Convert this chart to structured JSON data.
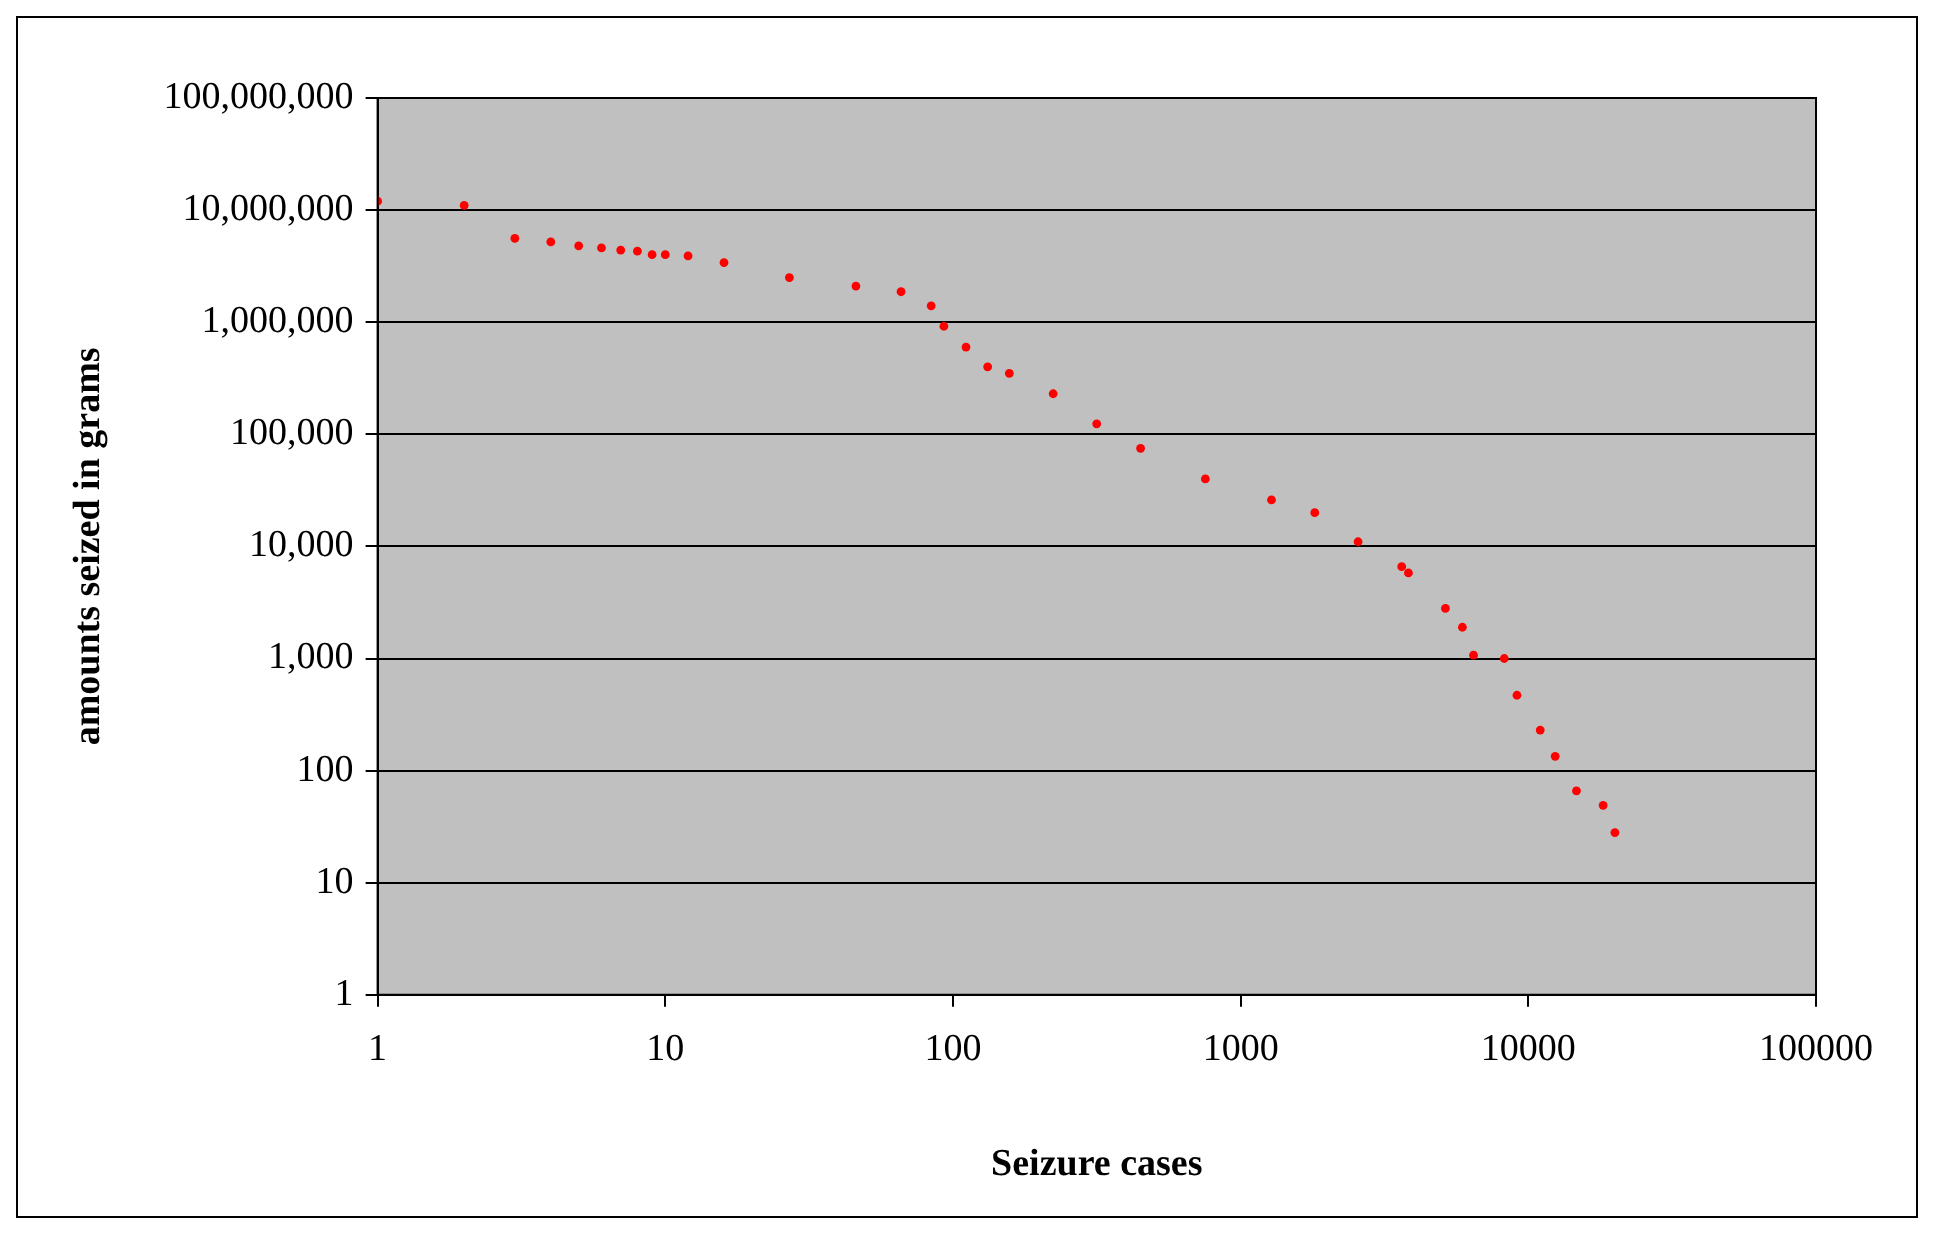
{
  "chart_data": {
    "type": "scatter",
    "xlabel": "Seizure cases",
    "ylabel": "amounts seized in grams",
    "log": "xy",
    "grid": "y",
    "marker": "circle",
    "xlim": [
      1,
      100000
    ],
    "xticks": [
      1,
      10,
      100,
      1000,
      10000,
      100000
    ],
    "ylim": [
      1,
      100000000
    ],
    "yticks": [
      1,
      10,
      100,
      {
        "value": 1000,
        "label": "1,000"
      },
      {
        "value": 10000,
        "label": "10,000"
      },
      {
        "value": 100000,
        "label": "100,000"
      },
      {
        "value": 1000000,
        "label": "1,000,000"
      },
      {
        "value": 10000000,
        "label": "10,000,000"
      },
      {
        "value": 100000000,
        "label": "100,000,000"
      }
    ],
    "series": [
      {
        "color": "#ff0000",
        "x": [
          1,
          2,
          3,
          4,
          5,
          6,
          7,
          8,
          9,
          10,
          12,
          16,
          27,
          46,
          66,
          84,
          93,
          111,
          132,
          157,
          223,
          316,
          449,
          754,
          1280,
          1810,
          2560,
          3630,
          3830,
          5150,
          5900,
          6450,
          8250,
          9130,
          11000,
          12400,
          14700,
          18200,
          20000
        ],
        "values": [
          12000000,
          11000000,
          5600000,
          5200000,
          4800000,
          4600000,
          4400000,
          4300000,
          4000000,
          4000000,
          3900000,
          3400000,
          2500000,
          2100000,
          1870000,
          1400000,
          920000,
          600000,
          400000,
          350000,
          230000,
          124000,
          75000,
          40000,
          26000,
          20000,
          11000,
          6600,
          5800,
          2800,
          1900,
          1070,
          1000,
          470,
          230,
          134,
          66,
          49,
          28
        ]
      }
    ]
  }
}
